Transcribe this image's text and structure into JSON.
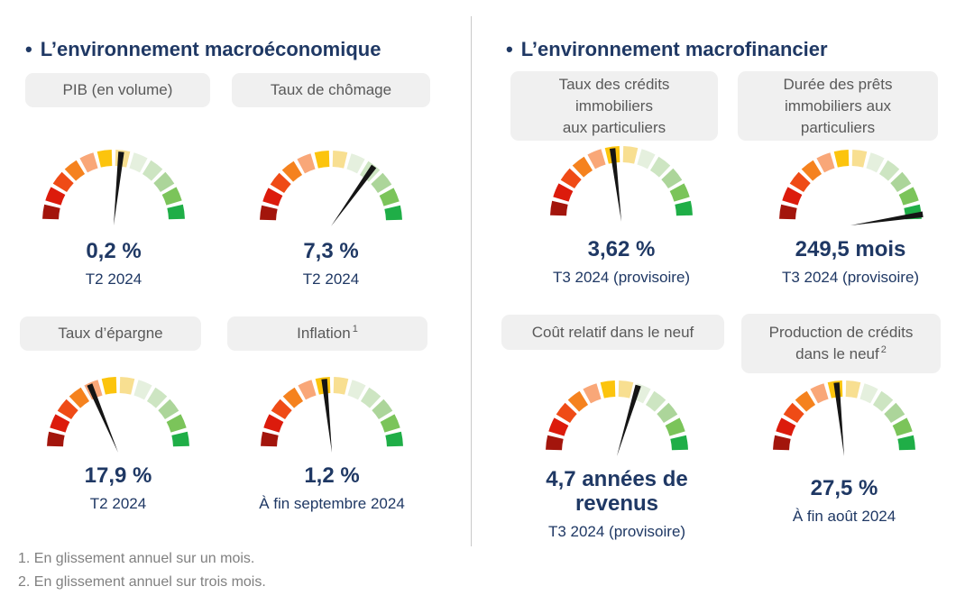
{
  "page": {
    "background": "#FFFFFF",
    "divider_color": "#C9C9C9",
    "accent_navy": "#1F3864",
    "pill_background": "#F0F0F0",
    "pill_text_color": "#595959",
    "footnote_color": "#808080"
  },
  "sections": [
    {
      "bullet": "•",
      "title": "L’environnement macroéconomique"
    },
    {
      "bullet": "•",
      "title": "L’environnement macrofinancier"
    }
  ],
  "footnotes": [
    "1. En glissement annuel sur un mois.",
    "2. En glissement annuel sur trois mois."
  ],
  "gauge_style": {
    "type_note": "semicircular 12-segment red-to-green gauge",
    "segments": 12,
    "arc_degrees": 180,
    "segment_colors": [
      "#A3150C",
      "#DC1B0C",
      "#EF4B16",
      "#F5821E",
      "#F9A778",
      "#FCC40D",
      "#F8DF91",
      "#E5F0DE",
      "#CDE5C2",
      "#ACD59A",
      "#7BC45A",
      "#1FAE47"
    ],
    "needle_color": "#151515"
  },
  "chart_data": [
    {
      "type": "gauge",
      "section": "L’environnement macroéconomique",
      "label": "PIB (en volume)",
      "label_lines": [
        "PIB (en volume)"
      ],
      "label_sup": "",
      "value": "0,2 %",
      "period": "T2 2024",
      "needle_angle_deg": 6
    },
    {
      "type": "gauge",
      "section": "L’environnement macroéconomique",
      "label": "Taux de chômage",
      "label_lines": [
        "Taux de chômage"
      ],
      "label_sup": "",
      "value": "7,3 %",
      "period": "T2 2024",
      "needle_angle_deg": 36
    },
    {
      "type": "gauge",
      "section": "L’environnement macroéconomique",
      "label": "Taux d’épargne",
      "label_lines": [
        "Taux d’épargne"
      ],
      "label_sup": "",
      "value": "17,9 %",
      "period": "T2 2024",
      "needle_angle_deg": -23
    },
    {
      "type": "gauge",
      "section": "L’environnement macroéconomique",
      "label": "Inflation",
      "label_lines": [
        "Inflation"
      ],
      "label_sup": "1",
      "value": "1,2 %",
      "period": "À fin septembre 2024",
      "needle_angle_deg": -6
    },
    {
      "type": "gauge",
      "section": "L’environnement macrofinancier",
      "label": "Taux des crédits immobiliers aux particuliers",
      "label_lines": [
        "Taux des crédits",
        "immobiliers",
        "aux particuliers"
      ],
      "label_sup": "",
      "value": "3,62 %",
      "period": "T3 2024 (provisoire)",
      "needle_angle_deg": -7
    },
    {
      "type": "gauge",
      "section": "L’environnement macrofinancier",
      "label": "Durée des prêts immobiliers aux particuliers",
      "label_lines": [
        "Durée des prêts",
        "immobiliers aux",
        "particuliers"
      ],
      "label_sup": "",
      "value": "249,5 mois",
      "period": "T3 2024 (provisoire)",
      "needle_angle_deg": 82
    },
    {
      "type": "gauge",
      "section": "L’environnement macrofinancier",
      "label": "Coût relatif dans le neuf",
      "label_lines": [
        "Coût relatif dans le neuf"
      ],
      "label_sup": "",
      "value": "4,7 années de revenus",
      "value_lines": [
        "4,7 années de",
        "revenus"
      ],
      "period": "T3 2024 (provisoire)",
      "needle_angle_deg": 17
    },
    {
      "type": "gauge",
      "section": "L’environnement macrofinancier",
      "label": "Production de crédits dans le neuf",
      "label_lines": [
        "Production de crédits",
        "dans le neuf"
      ],
      "label_sup": "2",
      "value": "27,5 %",
      "period": "À fin août 2024",
      "needle_angle_deg": -6
    }
  ]
}
